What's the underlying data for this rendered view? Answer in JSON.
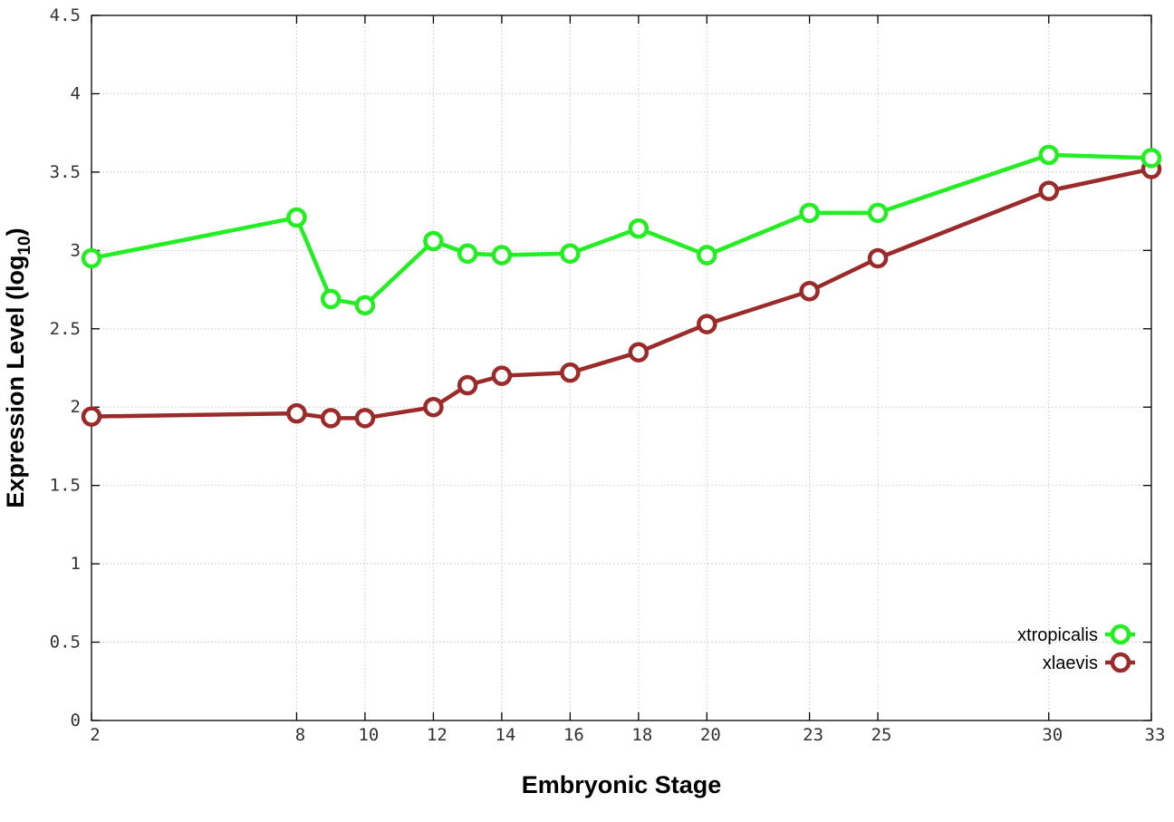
{
  "chart_data": {
    "type": "line",
    "xlabel": "Embryonic Stage",
    "ylabel": "Expression Level (log",
    "ylabel_subscript": "10",
    "ylabel_close": ")",
    "x": [
      2,
      8,
      9,
      10,
      12,
      13,
      14,
      16,
      18,
      20,
      23,
      25,
      30,
      33
    ],
    "x_ticks": [
      2,
      8,
      10,
      12,
      14,
      16,
      18,
      20,
      23,
      25,
      30,
      33
    ],
    "x_tick_labels": [
      "2",
      "8",
      "10",
      "12",
      "14",
      "16",
      "18",
      "20",
      "23",
      "25",
      "30",
      "33"
    ],
    "xlim": [
      2,
      33
    ],
    "ylim": [
      0,
      4.5
    ],
    "y_ticks": [
      0,
      0.5,
      1,
      1.5,
      2,
      2.5,
      3,
      3.5,
      4,
      4.5
    ],
    "y_tick_labels": [
      "0",
      "0.5",
      "1",
      "1.5",
      "2",
      "2.5",
      "3",
      "3.5",
      "4",
      "4.5"
    ],
    "grid": true,
    "legend_position": "bottom-right",
    "series": [
      {
        "name": "xtropicalis",
        "color": "#22ee22",
        "values": [
          2.95,
          3.21,
          2.69,
          2.65,
          3.06,
          2.98,
          2.97,
          2.98,
          3.14,
          2.97,
          3.24,
          3.24,
          3.61,
          3.59
        ]
      },
      {
        "name": "xlaevis",
        "color": "#9b2a2a",
        "values": [
          1.94,
          1.96,
          1.93,
          1.93,
          2.0,
          2.14,
          2.2,
          2.22,
          2.35,
          2.53,
          2.74,
          2.95,
          3.38,
          3.52
        ]
      }
    ]
  }
}
